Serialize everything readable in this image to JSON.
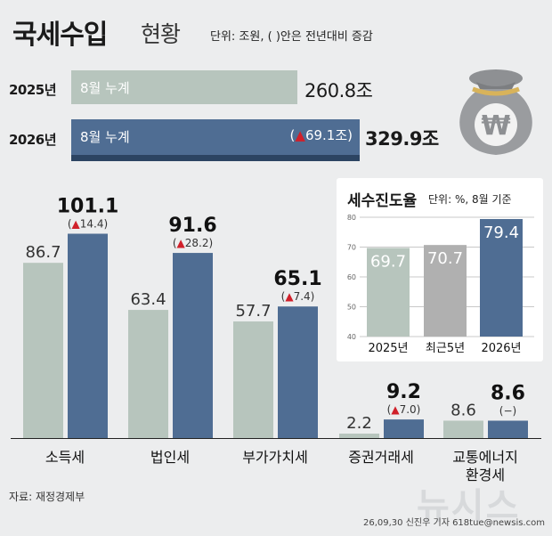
{
  "header": {
    "title": "국세수입",
    "subtitle": "현황",
    "unit_note": "단위: 조원, ( )안은 전년대비 증감"
  },
  "cumulative": [
    {
      "year": "2025년",
      "label": "8월 누계",
      "value": 260.8,
      "value_text": "260.8조",
      "change": ""
    },
    {
      "year": "2026년",
      "label": "8월 누계",
      "value": 329.9,
      "value_text": "329.9조",
      "change": "69.1조"
    }
  ],
  "chart_data": [
    {
      "type": "bar",
      "categories": [
        "소득세",
        "법인세",
        "부가가치세",
        "증권거래세",
        "교통에너지\n환경세"
      ],
      "series": [
        {
          "values": [
            86.7,
            63.4,
            57.7,
            2.2,
            8.6
          ]
        },
        {
          "values": [
            101.1,
            91.6,
            65.1,
            9.2,
            8.6
          ],
          "changes": [
            "14.4",
            "28.2",
            "7.4",
            "7.0",
            "−"
          ]
        }
      ],
      "colors": {
        "prev": "#b7c5bd",
        "curr": "#4f6d93",
        "arrow": "#d0202a"
      }
    },
    {
      "type": "bar",
      "title": "세수진도율",
      "unit_note": "단위: %, 8월 기준",
      "categories": [
        "2025년",
        "최근5년",
        "2026년"
      ],
      "values": [
        69.7,
        70.7,
        79.4
      ],
      "ylim": [
        40,
        80
      ],
      "yticks": [
        40,
        50,
        60,
        70,
        80
      ],
      "colors": [
        "#b7c5bd",
        "#b0b0b0",
        "#4f6d93"
      ]
    }
  ],
  "footer": {
    "source": "자료: 재정경제부",
    "credit": "26,09,30 신진우 기자 618tue@newsis.com",
    "watermark": "뉴시스"
  },
  "icons": {
    "money_bag": "money-bag-icon",
    "currency": "won-sign"
  }
}
